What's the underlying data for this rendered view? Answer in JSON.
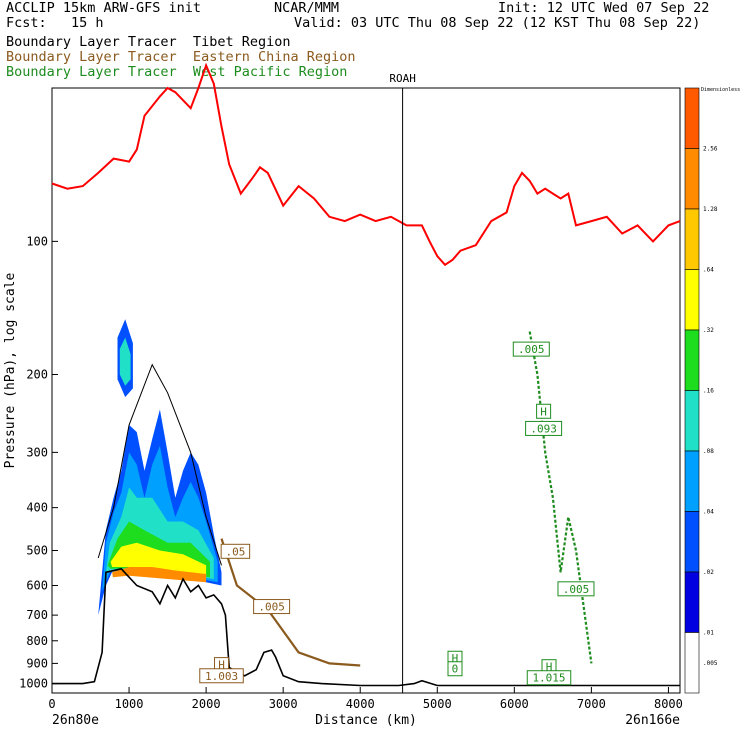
{
  "header": {
    "line1_left": "ACCLIP 15km ARW-GFS init",
    "line1_mid": "NCAR/MMM",
    "line1_right": "Init: 12 UTC Wed 07 Sep 22",
    "line2_left": "Fcst:   15 h",
    "line2_right": "Valid: 03 UTC Thu 08 Sep 22 (12 KST Thu 08 Sep 22)",
    "tracer_tibet": "Boundary Layer Tracer  Tibet Region",
    "tracer_china": "Boundary Layer Tracer  Eastern China Region",
    "tracer_pacific": "Boundary Layer Tracer  West Pacific Region"
  },
  "colors": {
    "tibet": "#000000",
    "china": "#8b5a1e",
    "pacific": "#1e8c1e",
    "tropopause": "#ff0000",
    "terrain": "#000000"
  },
  "chart_data": {
    "type": "heatmap",
    "title": "",
    "xlabel": "Distance (km)",
    "ylabel": "Pressure (hPa), log scale",
    "x_ticks": [
      0,
      1000,
      2000,
      3000,
      4000,
      5000,
      6000,
      7000,
      8000
    ],
    "y_ticks": [
      100,
      200,
      300,
      400,
      500,
      600,
      700,
      800,
      900,
      1000
    ],
    "xlim": [
      0,
      8150
    ],
    "ylim": [
      1050,
      45
    ],
    "y_scale": "log",
    "start_label": "26n80e",
    "end_label": "26n166e",
    "marker": {
      "label": "ROAH",
      "x": 4550
    },
    "colorbar": {
      "title": "Dimensionless",
      "levels": [
        "2.56",
        "1.28",
        ".64",
        ".32",
        ".16",
        ".08",
        ".04",
        ".02",
        ".01",
        ".005"
      ],
      "colors": [
        "#ff5a00",
        "#ff8c00",
        "#ffc800",
        "#ffff00",
        "#1edc1e",
        "#20e0c8",
        "#00a0ff",
        "#0050ff",
        "#0000e0",
        "#ffffff"
      ]
    },
    "contour_labels": [
      {
        "text": ".05",
        "series": "china",
        "x": 2380,
        "p": 510
      },
      {
        "text": ".005",
        "series": "china",
        "x": 2850,
        "p": 680
      },
      {
        "text": "H",
        "series": "china",
        "x": 2200,
        "p": 920
      },
      {
        "text": "1.003",
        "series": "china",
        "x": 2200,
        "p": 975
      },
      {
        "text": ".005",
        "series": "pacific",
        "x": 6220,
        "p": 178
      },
      {
        "text": "H",
        "series": "pacific",
        "x": 6380,
        "p": 246
      },
      {
        "text": ".093",
        "series": "pacific",
        "x": 6380,
        "p": 269
      },
      {
        "text": "H",
        "series": "pacific",
        "x": 5230,
        "p": 890
      },
      {
        "text": "0",
        "series": "pacific",
        "x": 5230,
        "p": 940
      },
      {
        "text": ".005",
        "series": "pacific",
        "x": 6800,
        "p": 620
      },
      {
        "text": "H",
        "series": "pacific",
        "x": 6450,
        "p": 930
      },
      {
        "text": "1.015",
        "series": "pacific",
        "x": 6450,
        "p": 985
      }
    ],
    "tropopause_series": {
      "name": "",
      "x": [
        0,
        200,
        400,
        600,
        800,
        1000,
        1100,
        1200,
        1400,
        1500,
        1600,
        1800,
        1900,
        2000,
        2100,
        2200,
        2300,
        2450,
        2600,
        2700,
        2800,
        3000,
        3200,
        3400,
        3600,
        3800,
        4000,
        4200,
        4400,
        4600,
        4800,
        4900,
        5000,
        5100,
        5200,
        5300,
        5500,
        5700,
        5900,
        6000,
        6100,
        6200,
        6300,
        6400,
        6500,
        6600,
        6700,
        6800,
        7000,
        7200,
        7400,
        7600,
        7800,
        8000,
        8150
      ],
      "p": [
        74,
        76,
        75,
        70,
        65,
        66,
        62,
        52,
        47,
        45,
        46,
        50,
        45,
        40,
        44,
        55,
        67,
        78,
        72,
        68,
        70,
        83,
        75,
        80,
        88,
        90,
        87,
        90,
        88,
        92,
        92,
        100,
        108,
        113,
        110,
        105,
        102,
        90,
        86,
        75,
        70,
        73,
        78,
        76,
        78,
        80,
        78,
        92,
        90,
        88,
        96,
        92,
        100,
        92,
        90
      ]
    },
    "terrain_series": {
      "name": "",
      "x": [
        0,
        100,
        400,
        550,
        650,
        700,
        900,
        1100,
        1300,
        1400,
        1500,
        1600,
        1700,
        1800,
        1900,
        2000,
        2100,
        2200,
        2250,
        2300,
        2500,
        2650,
        2750,
        2850,
        2900,
        3000,
        3200,
        3500,
        4000,
        4500,
        4700,
        4800,
        5000,
        6000,
        7000,
        8000,
        8150
      ],
      "p": [
        1000,
        1000,
        1000,
        990,
        850,
        560,
        550,
        600,
        620,
        660,
        600,
        640,
        580,
        620,
        600,
        640,
        630,
        660,
        700,
        920,
        960,
        930,
        850,
        840,
        870,
        960,
        990,
        1000,
        1010,
        1010,
        1000,
        985,
        1010,
        1010,
        1010,
        1010,
        1010
      ]
    },
    "series": [
      {
        "name": "Tibet Region",
        "x": [
          600,
          800,
          1000,
          1300,
          1500,
          1800,
          2000,
          2200
        ],
        "p": [
          520,
          400,
          260,
          190,
          220,
          300,
          420,
          540
        ]
      },
      {
        "name": "Eastern China Region",
        "x": [
          2200,
          2400,
          2800,
          3200,
          3600,
          4000
        ],
        "p": [
          470,
          600,
          680,
          850,
          900,
          910
        ]
      },
      {
        "name": "West Pacific Region",
        "x": [
          6200,
          6300,
          6400,
          6500,
          6600,
          6700,
          6800,
          7000
        ],
        "p": [
          160,
          200,
          300,
          380,
          560,
          420,
          500,
          900
        ]
      }
    ]
  }
}
